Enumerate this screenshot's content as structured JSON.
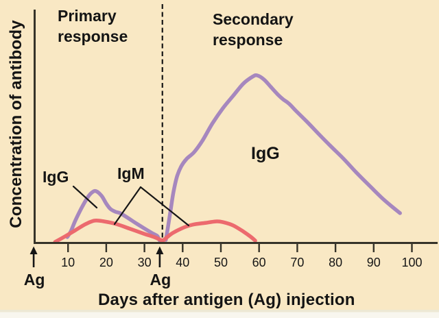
{
  "figure": {
    "primary_region_label": "Primary response",
    "secondary_region_label": "Secondary response",
    "background_color": "#F9E8C4"
  },
  "chart_data": {
    "type": "line",
    "title": "",
    "xlabel": "Days after antigen (Ag) injection",
    "ylabel": "Concentration of antibody",
    "x_ticks": [
      10,
      20,
      30,
      40,
      50,
      60,
      70,
      80,
      90,
      100
    ],
    "xlim": [
      0,
      107
    ],
    "ylim_relative_units": [
      0,
      105
    ],
    "grid": false,
    "legend": "inline-curve-labels",
    "divider_day": 35,
    "ag_markers": [
      {
        "label": "Ag",
        "day": 1
      },
      {
        "label": "Ag",
        "day": 34
      }
    ],
    "colors": {
      "igg": "#A687BE",
      "igm": "#EC6A6E",
      "axis": "#363329",
      "annotation": "#161616"
    },
    "series": [
      {
        "id": "igg-primary",
        "name": "IgG (primary response)",
        "color": "#A687BE",
        "points": [
          [
            9.8,
            2.9
          ],
          [
            10.7,
            6.2
          ],
          [
            11.9,
            12.8
          ],
          [
            13.4,
            19.8
          ],
          [
            15.0,
            26.3
          ],
          [
            16.2,
            29.6
          ],
          [
            17.3,
            30.5
          ],
          [
            18.8,
            27.6
          ],
          [
            20.0,
            23.0
          ],
          [
            21.1,
            19.8
          ],
          [
            22.4,
            18.1
          ],
          [
            23.6,
            17.3
          ],
          [
            25.4,
            14.8
          ],
          [
            27.6,
            11.5
          ],
          [
            29.9,
            8.2
          ],
          [
            32.0,
            5.3
          ],
          [
            33.3,
            3.7
          ],
          [
            33.7,
            2.1
          ],
          [
            34.0,
            0.8
          ]
        ]
      },
      {
        "id": "igg-secondary",
        "name": "IgG (secondary response)",
        "color": "#A687BE",
        "points": [
          [
            35.6,
            1.2
          ],
          [
            36.2,
            9.5
          ],
          [
            36.9,
            19.8
          ],
          [
            37.6,
            30.0
          ],
          [
            38.5,
            39.1
          ],
          [
            39.6,
            45.3
          ],
          [
            41.0,
            49.8
          ],
          [
            43.0,
            53.9
          ],
          [
            45.2,
            60.9
          ],
          [
            47.8,
            71.2
          ],
          [
            50.5,
            80.2
          ],
          [
            53.2,
            87.7
          ],
          [
            55.9,
            95.1
          ],
          [
            58.3,
            99.2
          ],
          [
            59.5,
            100.0
          ],
          [
            61.3,
            97.5
          ],
          [
            63.1,
            93.0
          ],
          [
            64.9,
            88.5
          ],
          [
            66.3,
            85.6
          ],
          [
            67.8,
            83.1
          ],
          [
            69.7,
            78.6
          ],
          [
            72.6,
            72.0
          ],
          [
            75.7,
            64.6
          ],
          [
            78.7,
            57.6
          ],
          [
            82.0,
            50.2
          ],
          [
            85.5,
            41.6
          ],
          [
            89.1,
            33.3
          ],
          [
            92.4,
            25.9
          ],
          [
            94.9,
            21.0
          ],
          [
            96.9,
            17.3
          ]
        ]
      },
      {
        "id": "igm-primary",
        "name": "IgM (primary response)",
        "color": "#EC6A6E",
        "points": [
          [
            6.6,
            0.0
          ],
          [
            9.2,
            3.3
          ],
          [
            11.9,
            7.0
          ],
          [
            14.6,
            10.7
          ],
          [
            17.0,
            12.8
          ],
          [
            19.5,
            12.3
          ],
          [
            22.7,
            10.7
          ],
          [
            26.3,
            7.8
          ],
          [
            29.9,
            4.9
          ],
          [
            32.6,
            2.9
          ],
          [
            34.2,
            1.2
          ],
          [
            34.9,
            0.8
          ]
        ]
      },
      {
        "id": "igm-secondary",
        "name": "IgM (secondary response)",
        "color": "#EC6A6E",
        "points": [
          [
            34.9,
            0.8
          ],
          [
            37.1,
            4.9
          ],
          [
            39.8,
            8.2
          ],
          [
            42.5,
            10.3
          ],
          [
            46.1,
            11.5
          ],
          [
            48.7,
            12.3
          ],
          [
            50.5,
            11.9
          ],
          [
            53.2,
            9.9
          ],
          [
            55.9,
            6.2
          ],
          [
            57.7,
            3.3
          ],
          [
            59.0,
            0.8
          ]
        ]
      }
    ],
    "curve_labels": [
      {
        "id": "igg-primary-label",
        "text": "IgG",
        "leaders": [
          [
            [
              107,
              272
            ],
            [
              141,
              303
            ]
          ]
        ]
      },
      {
        "id": "igm-label",
        "text": "IgM",
        "leaders": [
          [
            [
              205,
              273
            ],
            [
              167,
              327
            ]
          ],
          [
            [
              205,
              273
            ],
            [
              275,
              329
            ]
          ]
        ]
      },
      {
        "id": "igg-secondary-label",
        "text": "IgG",
        "leaders": []
      }
    ]
  }
}
